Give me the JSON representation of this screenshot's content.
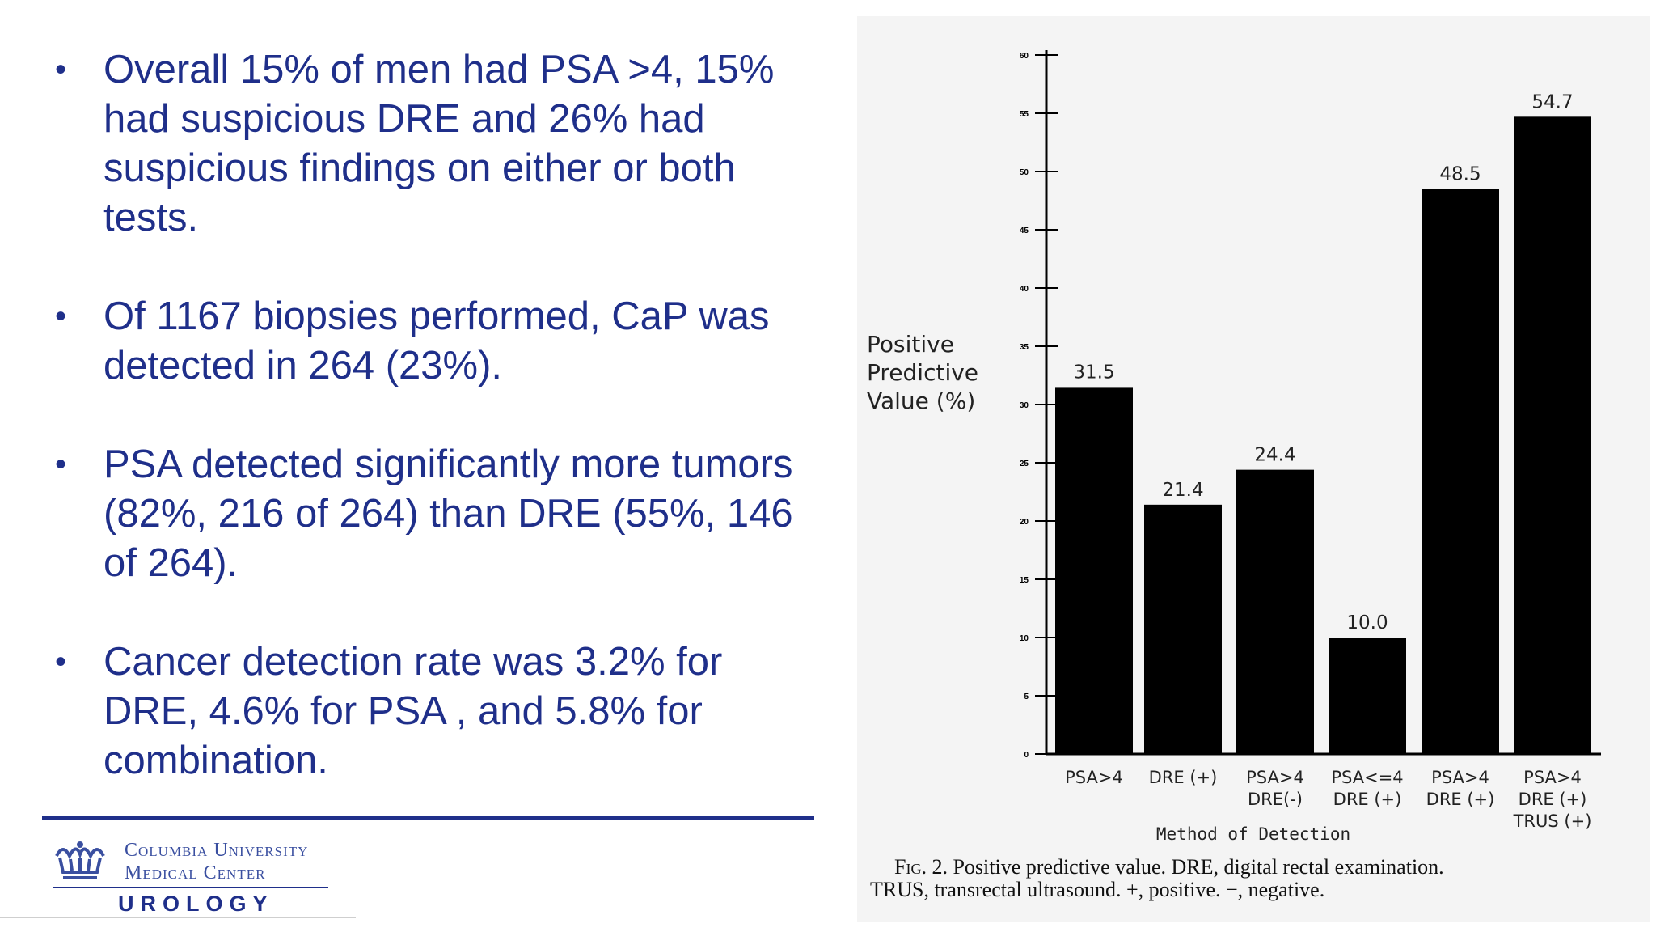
{
  "bullets": [
    {
      "text": "Overall 15% of men had PSA >4, 15% had suspicious DRE and 26% had suspicious findings on either or both tests."
    },
    {
      "text": "Of 1167 biopsies performed, CaP was detected in 264 (23%)."
    },
    {
      "text": "PSA detected significantly more tumors (82%, 216 of 264) than DRE (55%, 146 of 264)."
    },
    {
      "text": "Cancer detection rate was 3.2% for DRE, 4.6% for PSA , and 5.8% for combination."
    }
  ],
  "logo": {
    "line1": "Columbia University",
    "line2": "Medical Center",
    "dept": "UROLOGY"
  },
  "colors": {
    "text_blue": "#1f2f8a",
    "bar": "#000000"
  },
  "chart_data": {
    "type": "bar",
    "ylabel": [
      "Positive",
      "Predictive",
      "Value (%)"
    ],
    "xlabel": "Method of Detection",
    "ylim": [
      0,
      60
    ],
    "yticks": [
      0,
      5,
      10,
      15,
      20,
      25,
      30,
      35,
      40,
      45,
      50,
      55,
      60
    ],
    "categories": [
      [
        "PSA>4"
      ],
      [
        "DRE (+)"
      ],
      [
        "PSA>4",
        "DRE(-)"
      ],
      [
        "PSA<=4",
        "DRE (+)"
      ],
      [
        "PSA>4",
        "DRE (+)"
      ],
      [
        "PSA>4",
        "DRE (+)",
        "TRUS (+)"
      ]
    ],
    "values": [
      31.5,
      21.4,
      24.4,
      10.0,
      48.5,
      54.7
    ],
    "value_labels": [
      "31.5",
      "21.4",
      "24.4",
      "10.0",
      "48.5",
      "54.7"
    ],
    "caption": {
      "lead": "Fig. 2.",
      "text": "Positive predictive value. DRE, digital rectal examination. TRUS, transrectal ultrasound. +, positive. −, negative."
    }
  }
}
